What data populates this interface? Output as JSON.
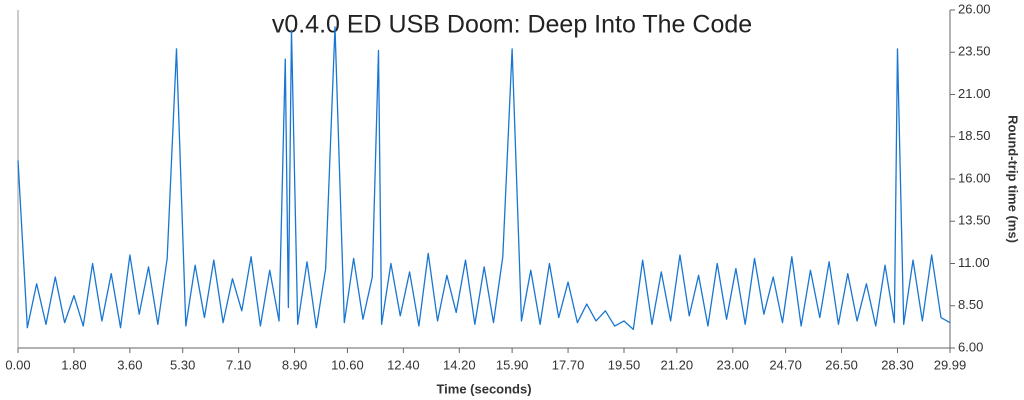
{
  "chart_data": {
    "type": "line",
    "title": "v0.4.0 ED USB Doom: Deep Into The Code",
    "x_label": "Time (seconds)",
    "y_label": "Round-trip time (ms)",
    "series": [
      {
        "color": "#1976d2",
        "x": [
          0,
          0.3,
          0.6,
          0.9,
          1.2,
          1.5,
          1.8,
          2.1,
          2.4,
          2.7,
          3.0,
          3.3,
          3.6,
          3.9,
          4.2,
          4.5,
          4.8,
          5.1,
          5.4,
          5.7,
          6.0,
          6.3,
          6.6,
          6.9,
          7.2,
          7.5,
          7.8,
          8.1,
          8.4,
          8.6,
          8.7,
          8.8,
          9.0,
          9.3,
          9.6,
          9.9,
          10.2,
          10.5,
          10.8,
          11.1,
          11.4,
          11.6,
          11.7,
          12.0,
          12.3,
          12.6,
          12.9,
          13.2,
          13.5,
          13.8,
          14.1,
          14.4,
          14.7,
          15.0,
          15.3,
          15.6,
          15.9,
          16.2,
          16.5,
          16.8,
          17.1,
          17.4,
          17.7,
          18.0,
          18.3,
          18.6,
          18.9,
          19.2,
          19.5,
          19.8,
          20.1,
          20.4,
          20.7,
          21.0,
          21.3,
          21.6,
          21.9,
          22.2,
          22.5,
          22.8,
          23.1,
          23.4,
          23.7,
          24.0,
          24.3,
          24.6,
          24.9,
          25.2,
          25.5,
          25.8,
          26.1,
          26.4,
          26.7,
          27.0,
          27.3,
          27.6,
          27.9,
          28.2,
          28.3,
          28.5,
          28.8,
          29.1,
          29.4,
          29.7,
          29.99
        ],
        "values": [
          17.1,
          7.2,
          9.8,
          7.4,
          10.2,
          7.5,
          9.1,
          7.3,
          11.0,
          7.6,
          10.4,
          7.2,
          11.5,
          8.0,
          10.8,
          7.4,
          11.3,
          23.7,
          7.3,
          10.9,
          7.8,
          11.2,
          7.5,
          10.1,
          8.2,
          11.4,
          7.3,
          10.6,
          7.6,
          23.1,
          8.4,
          24.8,
          7.4,
          11.1,
          7.2,
          10.7,
          25.0,
          7.5,
          11.3,
          7.7,
          10.2,
          23.6,
          7.4,
          11.0,
          7.9,
          10.5,
          7.3,
          11.6,
          7.6,
          10.3,
          8.1,
          11.2,
          7.4,
          10.8,
          7.5,
          11.4,
          23.7,
          7.6,
          10.6,
          7.4,
          11.0,
          7.8,
          9.9,
          7.5,
          8.6,
          7.6,
          8.2,
          7.3,
          7.6,
          7.1,
          11.2,
          7.4,
          10.5,
          7.6,
          11.5,
          7.9,
          10.3,
          7.3,
          11.0,
          7.7,
          10.7,
          7.4,
          11.3,
          8.0,
          10.2,
          7.5,
          11.4,
          7.3,
          10.6,
          7.8,
          11.1,
          7.4,
          10.4,
          7.6,
          9.8,
          7.3,
          10.9,
          7.5,
          23.7,
          7.4,
          11.2,
          7.6,
          11.5,
          7.8,
          7.5
        ]
      }
    ],
    "xlim": [
      0,
      29.99
    ],
    "xticks": [
      {
        "value": 0,
        "label": "0.00"
      },
      {
        "value": 1.8,
        "label": "1.80"
      },
      {
        "value": 3.6,
        "label": "3.60"
      },
      {
        "value": 5.3,
        "label": "5.30"
      },
      {
        "value": 7.1,
        "label": "7.10"
      },
      {
        "value": 8.9,
        "label": "8.90"
      },
      {
        "value": 10.6,
        "label": "10.60"
      },
      {
        "value": 12.4,
        "label": "12.40"
      },
      {
        "value": 14.2,
        "label": "14.20"
      },
      {
        "value": 15.9,
        "label": "15.90"
      },
      {
        "value": 17.7,
        "label": "17.70"
      },
      {
        "value": 19.5,
        "label": "19.50"
      },
      {
        "value": 21.2,
        "label": "21.20"
      },
      {
        "value": 23,
        "label": "23.00"
      },
      {
        "value": 24.7,
        "label": "24.70"
      },
      {
        "value": 26.5,
        "label": "26.50"
      },
      {
        "value": 28.3,
        "label": "28.30"
      },
      29.99
    ],
    "ylim": [
      6,
      26
    ],
    "yticks": [
      {
        "value": 6,
        "label": "6.00"
      },
      {
        "value": 8.5,
        "label": "8.50"
      },
      {
        "value": 11,
        "label": "11.00"
      },
      {
        "value": 13.5,
        "label": "13.50"
      },
      {
        "value": 16,
        "label": "16.00"
      },
      {
        "value": 18.5,
        "label": "18.50"
      },
      {
        "value": 21,
        "label": "21.00"
      },
      {
        "value": 23.5,
        "label": "23.50"
      },
      {
        "value": 26,
        "label": "26.00"
      }
    ]
  }
}
